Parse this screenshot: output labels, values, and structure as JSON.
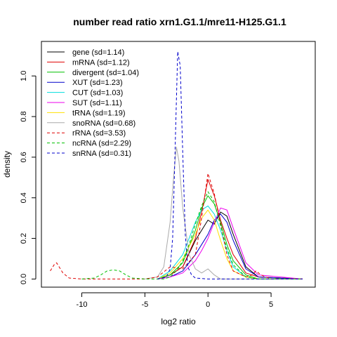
{
  "chart_data": {
    "type": "line",
    "title": "number read ratio xrn1.G1.1/mre11-H125.G1.1",
    "xlabel": "log2 ratio",
    "ylabel": "density",
    "xlim": [
      -13.2,
      8.5
    ],
    "ylim": [
      -0.04,
      1.17
    ],
    "xticks": [
      -10,
      -5,
      0,
      5
    ],
    "yticks": [
      0.0,
      0.2,
      0.4,
      0.6,
      0.8,
      1.0
    ],
    "ytick_labels": [
      "0.0",
      "0.2",
      "0.4",
      "0.6",
      "0.8",
      "1.0"
    ],
    "legend_position": "top-left",
    "series": [
      {
        "name": "gene (sd=1.14)",
        "color": "#000000",
        "dash": "solid",
        "x": [
          -4,
          -3,
          -2,
          -1,
          -0.5,
          0,
          0.5,
          1,
          1.5,
          2,
          3,
          4,
          7.5
        ],
        "y": [
          0,
          0.02,
          0.06,
          0.19,
          0.24,
          0.29,
          0.27,
          0.33,
          0.31,
          0.22,
          0.06,
          0.01,
          0
        ]
      },
      {
        "name": "mRNA (sd=1.12)",
        "color": "#df0000",
        "dash": "solid",
        "x": [
          -4,
          -3,
          -2,
          -1,
          -0.5,
          0,
          0.5,
          1,
          1.5,
          2,
          3,
          4,
          7.5
        ],
        "y": [
          0,
          0.02,
          0.06,
          0.2,
          0.33,
          0.49,
          0.41,
          0.29,
          0.2,
          0.12,
          0.03,
          0.01,
          0
        ]
      },
      {
        "name": "divergent (sd=1.04)",
        "color": "#00c000",
        "dash": "solid",
        "x": [
          -4,
          -3,
          -2,
          -1,
          -0.5,
          0,
          0.5,
          1,
          1.5,
          2,
          3,
          4,
          7.5
        ],
        "y": [
          0,
          0.02,
          0.08,
          0.24,
          0.35,
          0.41,
          0.37,
          0.28,
          0.17,
          0.09,
          0.02,
          0,
          0
        ]
      },
      {
        "name": "XUT (sd=1.23)",
        "color": "#0000cc",
        "dash": "solid",
        "x": [
          -4,
          -3,
          -2,
          -1,
          -0.5,
          0,
          0.5,
          1,
          1.5,
          2,
          3,
          4,
          7.5
        ],
        "y": [
          0,
          0.01,
          0.04,
          0.12,
          0.17,
          0.22,
          0.29,
          0.32,
          0.28,
          0.19,
          0.05,
          0.01,
          0
        ]
      },
      {
        "name": "CUT (sd=1.03)",
        "color": "#00dddd",
        "dash": "solid",
        "x": [
          -4,
          -3,
          -2,
          -1,
          -0.5,
          0,
          0.5,
          1,
          1.5,
          2,
          3,
          4,
          7.5
        ],
        "y": [
          0,
          0.04,
          0.12,
          0.28,
          0.34,
          0.36,
          0.32,
          0.24,
          0.14,
          0.06,
          0.01,
          0,
          0
        ]
      },
      {
        "name": "SUT (sd=1.11)",
        "color": "#ee00ee",
        "dash": "solid",
        "x": [
          -4,
          -3,
          -2,
          -1,
          -0.5,
          0,
          0.5,
          1,
          1.5,
          2,
          3,
          4,
          7.5
        ],
        "y": [
          0,
          0.01,
          0.03,
          0.09,
          0.14,
          0.2,
          0.28,
          0.35,
          0.34,
          0.25,
          0.08,
          0.02,
          0
        ]
      },
      {
        "name": "tRNA (sd=1.19)",
        "color": "#ffe000",
        "dash": "solid",
        "x": [
          -4,
          -3,
          -2,
          -1,
          -0.5,
          0,
          0.5,
          1,
          1.5,
          2,
          3,
          4,
          7.5
        ],
        "y": [
          0,
          0.03,
          0.1,
          0.22,
          0.3,
          0.34,
          0.29,
          0.19,
          0.1,
          0.04,
          0.01,
          0,
          0
        ]
      },
      {
        "name": "snoRNA (sd=0.68)",
        "color": "#aaaaaa",
        "dash": "solid",
        "x": [
          -5,
          -4,
          -3.5,
          -3,
          -2.7,
          -2.5,
          -2.3,
          -2,
          -1.5,
          -1,
          -0.5,
          0,
          0.5,
          1,
          7.5
        ],
        "y": [
          0,
          0.01,
          0.06,
          0.28,
          0.52,
          0.65,
          0.58,
          0.35,
          0.12,
          0.05,
          0.03,
          0.05,
          0.02,
          0,
          0
        ]
      },
      {
        "name": "rRNA (sd=3.53)",
        "color": "#df0000",
        "dash": "dashed",
        "x": [
          -12.5,
          -12.2,
          -12,
          -11.8,
          -11.5,
          -11,
          -10,
          -5,
          -4,
          -3,
          -2,
          -1,
          -0.5,
          0,
          0.5,
          1,
          1.5,
          2,
          3,
          3.5,
          3.8,
          4.2,
          5,
          7.5
        ],
        "y": [
          0.04,
          0.07,
          0.08,
          0.06,
          0.03,
          0.005,
          0,
          0,
          0.01,
          0.06,
          0.05,
          0.12,
          0.3,
          0.52,
          0.42,
          0.27,
          0.12,
          0.04,
          0.01,
          0.02,
          0.04,
          0.02,
          0,
          0
        ]
      },
      {
        "name": "ncRNA (sd=2.29)",
        "color": "#00c000",
        "dash": "dashed",
        "x": [
          -10,
          -9,
          -8.5,
          -8,
          -7.5,
          -7,
          -6.5,
          -6,
          -5,
          -3.5,
          -3,
          -2.5,
          -2,
          -1.5,
          -1,
          -0.5,
          0,
          0.5,
          1,
          1.5,
          2,
          3,
          4,
          7.5
        ],
        "y": [
          0,
          0.005,
          0.02,
          0.04,
          0.045,
          0.04,
          0.02,
          0.005,
          0,
          0,
          0.01,
          0.04,
          0.09,
          0.17,
          0.27,
          0.36,
          0.43,
          0.38,
          0.26,
          0.15,
          0.07,
          0.01,
          0,
          0
        ]
      },
      {
        "name": "snRNA (sd=0.31)",
        "color": "#0000cc",
        "dash": "dashed",
        "x": [
          -4,
          -3.3,
          -3,
          -2.8,
          -2.6,
          -2.4,
          -2.2,
          -2,
          -1.8,
          -1.6,
          -1.3,
          -1,
          0,
          7.5
        ],
        "y": [
          0,
          0.01,
          0.05,
          0.2,
          0.65,
          1.12,
          1.05,
          0.62,
          0.22,
          0.06,
          0.02,
          0.005,
          0,
          0
        ]
      }
    ]
  }
}
